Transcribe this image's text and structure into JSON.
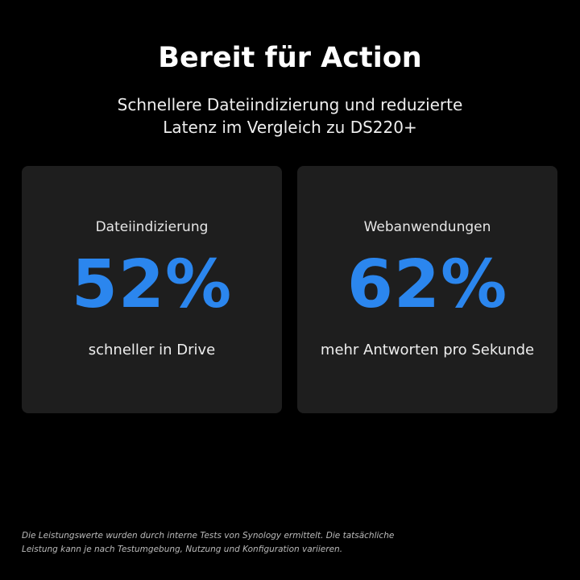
{
  "header": {
    "title": "Bereit für Action",
    "subtitle_lines": [
      "Schnellere Dateiindizierung und reduzierte",
      "Latenz im Vergleich zu DS220+"
    ]
  },
  "cards": [
    {
      "label": "Dateiindizierung",
      "value": "52%",
      "description": "schneller in Drive"
    },
    {
      "label": "Webanwendungen",
      "value": "62%",
      "description": "mehr Antworten pro Sekunde"
    }
  ],
  "footnote_lines": [
    "Die Leistungswerte wurden durch interne Tests von Synology ermittelt. Die tatsächliche",
    "Leistung kann je nach Testumgebung, Nutzung und Konfiguration variieren."
  ]
}
